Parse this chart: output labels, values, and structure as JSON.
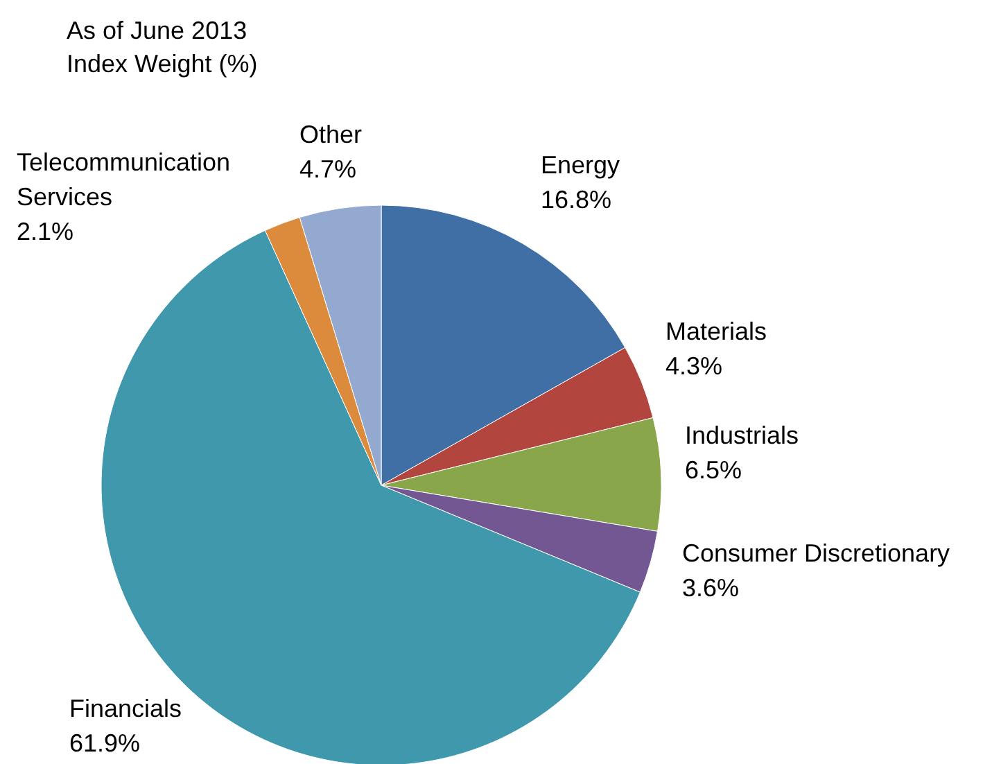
{
  "chart_data": {
    "type": "pie",
    "title": "As of June 2013",
    "subtitle": "Index Weight (%)",
    "categories": [
      "Energy",
      "Materials",
      "Industrials",
      "Consumer Discretionary",
      "Financials",
      "Telecommunication Services",
      "Other"
    ],
    "values": [
      16.8,
      4.3,
      6.5,
      3.6,
      61.9,
      2.1,
      4.7
    ],
    "colors": [
      "#3f6fa5",
      "#b3453f",
      "#8aa64a",
      "#735792",
      "#3f98ac",
      "#dc8a3c",
      "#93a9d0"
    ],
    "value_labels": [
      "16.8%",
      "4.3%",
      "6.5%",
      "3.6%",
      "61.9%",
      "2.1%",
      "4.7%"
    ]
  }
}
